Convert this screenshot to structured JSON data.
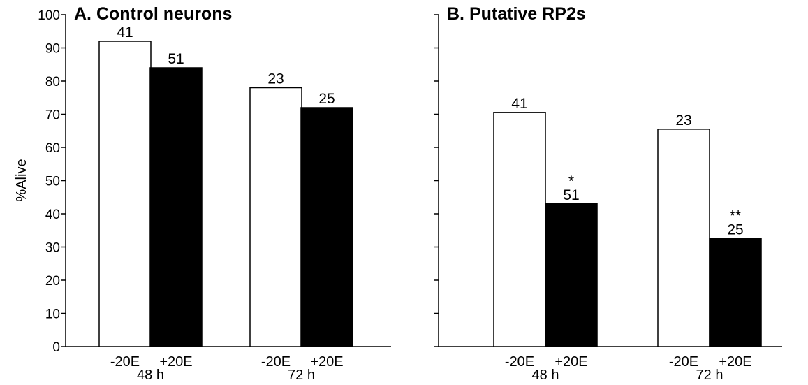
{
  "chart_data": [
    {
      "type": "bar",
      "title": "A. Control neurons",
      "ylabel": "%Alive",
      "xlabel": "",
      "ylim": [
        0,
        100
      ],
      "yticks": [
        0,
        10,
        20,
        30,
        40,
        50,
        60,
        70,
        80,
        90,
        100
      ],
      "show_tick_labels": true,
      "grid": false,
      "groups": [
        "48 h",
        "72 h"
      ],
      "categories": [
        "-20E",
        "+20E"
      ],
      "series": [
        {
          "color": "#ffffff",
          "values": [
            92,
            78
          ],
          "labels": [
            "41",
            "23"
          ],
          "annotations": [
            "",
            ""
          ]
        },
        {
          "color": "#000000",
          "values": [
            84,
            72
          ],
          "labels": [
            "51",
            "25"
          ],
          "annotations": [
            "",
            ""
          ]
        }
      ]
    },
    {
      "type": "bar",
      "title": "B. Putative RP2s",
      "ylabel": "",
      "xlabel": "",
      "ylim": [
        0,
        100
      ],
      "yticks": [
        0,
        10,
        20,
        30,
        40,
        50,
        60,
        70,
        80,
        90,
        100
      ],
      "show_tick_labels": false,
      "grid": false,
      "groups": [
        "48 h",
        "72 h"
      ],
      "categories": [
        "-20E",
        "+20E"
      ],
      "series": [
        {
          "color": "#ffffff",
          "values": [
            70.5,
            65.5
          ],
          "labels": [
            "41",
            "23"
          ],
          "annotations": [
            "",
            ""
          ]
        },
        {
          "color": "#000000",
          "values": [
            43,
            32.5
          ],
          "labels": [
            "51",
            "25"
          ],
          "annotations": [
            "*",
            "**"
          ]
        }
      ]
    }
  ]
}
